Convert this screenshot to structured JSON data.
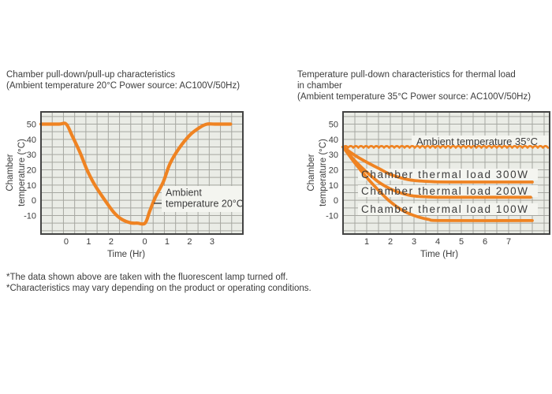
{
  "page": {
    "background": "#ffffff",
    "text_color": "#3c3c3c",
    "accent_color": "#ef8322",
    "plot_background": "#eaece6",
    "grid_color": "#a6a7a1",
    "plot_border_color": "#434343",
    "label_box_color": "#f4f5f0"
  },
  "notes": [
    "*The data shown above are taken with the fluorescent lamp turned off.",
    "*Characteristics may vary depending on the product or operating conditions."
  ],
  "chart_data": [
    {
      "id": "pulldown",
      "type": "line",
      "title": "Chamber pull-down/pull-up characteristics",
      "subtitle": "(Ambient temperature 20°C Power source: AC100V/50Hz)",
      "x_label": "Time (Hr)",
      "y_label": "Chamber\ntemperature (°C)",
      "y_ticks": [
        50,
        40,
        30,
        20,
        10,
        0,
        -10
      ],
      "y_range": [
        -22.5,
        57.5
      ],
      "grid": true,
      "legend_position": "none",
      "line_color": "#ef8322",
      "x_ticks": [
        {
          "pos": 2.25,
          "label": "0"
        },
        {
          "pos": 4.25,
          "label": "1"
        },
        {
          "pos": 6.25,
          "label": "2"
        },
        {
          "pos": 9.25,
          "label": "0"
        },
        {
          "pos": 11.25,
          "label": "1"
        },
        {
          "pos": 13.25,
          "label": "2"
        },
        {
          "pos": 15.25,
          "label": "3"
        }
      ],
      "series": [
        {
          "name": "chamber-temperature",
          "points": [
            [
              0,
              50
            ],
            [
              1.6,
              50
            ],
            [
              2.25,
              50
            ],
            [
              2.8,
              42
            ],
            [
              3.5,
              31
            ],
            [
              4.1,
              20
            ],
            [
              4.8,
              10
            ],
            [
              5.7,
              0
            ],
            [
              6.5,
              -8
            ],
            [
              7.2,
              -12.5
            ],
            [
              8.0,
              -14.8
            ],
            [
              8.6,
              -15
            ],
            [
              9.28,
              -15
            ],
            [
              9.7,
              -7
            ],
            [
              10.2,
              2
            ],
            [
              10.9,
              12
            ],
            [
              11.5,
              24
            ],
            [
              12.3,
              34
            ],
            [
              13.3,
              43
            ],
            [
              14.2,
              48
            ],
            [
              14.8,
              50
            ],
            [
              15.5,
              50
            ],
            [
              16.9,
              50
            ]
          ]
        }
      ],
      "annotations": [
        {
          "text": "Ambient\ntemperature 20°C"
        }
      ]
    },
    {
      "id": "thermal",
      "type": "line",
      "title": "Temperature pull-down characteristics for thermal load\nin chamber",
      "subtitle": "(Ambient temperature 35°C  Power source: AC100V/50Hz)",
      "x_label": "Time (Hr)",
      "y_label": "Chamber\ntemperature (°C)",
      "y_ticks": [
        50,
        40,
        30,
        20,
        10,
        0,
        -10
      ],
      "y_range": [
        -22.5,
        57.5
      ],
      "grid": true,
      "legend_position": "none",
      "line_color": "#ef8322",
      "x_ticks": [
        {
          "pos": 1,
          "label": "1"
        },
        {
          "pos": 2,
          "label": "2"
        },
        {
          "pos": 3,
          "label": "3"
        },
        {
          "pos": 4,
          "label": "4"
        },
        {
          "pos": 5,
          "label": "5"
        },
        {
          "pos": 6,
          "label": "6"
        },
        {
          "pos": 7,
          "label": "7"
        }
      ],
      "series": [
        {
          "name": "ambient-temperature-35c",
          "style": "wavy",
          "points": [
            [
              0,
              34.5
            ],
            [
              8.73,
              34.5
            ]
          ]
        },
        {
          "name": "chamber-thermal-load-300w",
          "points": [
            [
              0,
              35
            ],
            [
              0.5,
              29.5
            ],
            [
              1,
              25
            ],
            [
              1.5,
              21
            ],
            [
              2,
              17
            ],
            [
              2.5,
              14.5
            ],
            [
              3,
              13
            ],
            [
              3.8,
              12.2
            ],
            [
              4.5,
              12
            ],
            [
              8,
              12
            ]
          ]
        },
        {
          "name": "chamber-thermal-load-200w",
          "points": [
            [
              0,
              35
            ],
            [
              0.5,
              26
            ],
            [
              1,
              18.5
            ],
            [
              1.5,
              12
            ],
            [
              2,
              7.5
            ],
            [
              2.5,
              4.5
            ],
            [
              3,
              2.8
            ],
            [
              3.8,
              2.1
            ],
            [
              4.5,
              2
            ],
            [
              7.93,
              2
            ]
          ]
        },
        {
          "name": "chamber-thermal-load-100w",
          "points": [
            [
              0,
              35
            ],
            [
              0.5,
              24.5
            ],
            [
              1,
              15
            ],
            [
              1.5,
              6.5
            ],
            [
              2,
              -1
            ],
            [
              2.5,
              -6.5
            ],
            [
              3,
              -10
            ],
            [
              3.6,
              -12.5
            ],
            [
              4.2,
              -13.3
            ],
            [
              8,
              -13.3
            ]
          ]
        }
      ],
      "annotations": [
        {
          "text": "Ambient temperature 35°C"
        },
        {
          "text": "Chamber thermal load 300W"
        },
        {
          "text": "Chamber thermal load 200W"
        },
        {
          "text": "Chamber thermal load 100W"
        }
      ]
    }
  ]
}
